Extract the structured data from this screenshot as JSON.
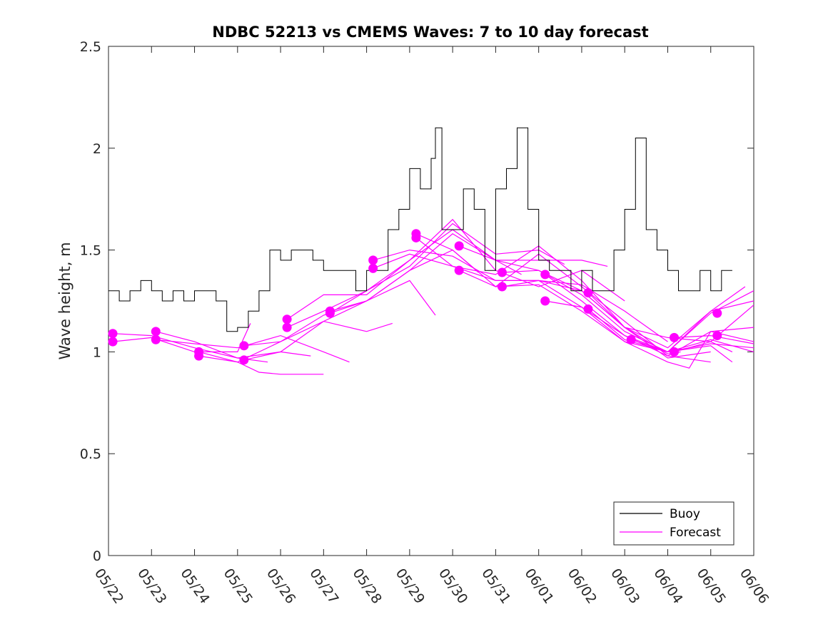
{
  "chart_data": {
    "type": "line",
    "title": "NDBC 52213 vs CMEMS Waves: 7 to 10 day forecast",
    "xlabel": "",
    "ylabel": "Wave height, m",
    "ylim": [
      0,
      2.5
    ],
    "yticks": [
      "0",
      "0.5",
      "1",
      "1.5",
      "2",
      "2.5"
    ],
    "xticks": [
      "05/22",
      "05/23",
      "05/24",
      "05/25",
      "05/26",
      "05/27",
      "05/28",
      "05/29",
      "05/30",
      "05/31",
      "06/01",
      "06/02",
      "06/03",
      "06/04",
      "06/05",
      "06/06"
    ],
    "xlim_days": [
      0,
      15
    ],
    "grid": false,
    "legend_position": "bottom-right",
    "legend": [
      "Buoy",
      "Forecast"
    ],
    "colors": {
      "buoy": "#000000",
      "forecast": "#ff00ff"
    },
    "series": [
      {
        "name": "Buoy",
        "x": [
          0,
          0.25,
          0.5,
          0.75,
          1,
          1.25,
          1.5,
          1.75,
          2,
          2.25,
          2.5,
          2.75,
          3,
          3.25,
          3.5,
          3.75,
          4,
          4.25,
          4.5,
          4.75,
          5,
          5.25,
          5.5,
          5.75,
          6,
          6.25,
          6.5,
          6.75,
          7,
          7.25,
          7.5,
          7.6,
          7.75,
          8,
          8.25,
          8.5,
          8.75,
          9,
          9.25,
          9.5,
          9.75,
          10,
          10.25,
          10.5,
          10.75,
          11,
          11.25,
          11.5,
          11.75,
          12,
          12.25,
          12.5,
          12.75,
          13,
          13.25,
          13.5,
          13.75,
          14,
          14.25,
          14.5
        ],
        "y": [
          1.3,
          1.25,
          1.3,
          1.35,
          1.3,
          1.25,
          1.3,
          1.25,
          1.3,
          1.3,
          1.25,
          1.1,
          1.12,
          1.2,
          1.3,
          1.5,
          1.45,
          1.5,
          1.5,
          1.45,
          1.4,
          1.4,
          1.4,
          1.3,
          1.4,
          1.4,
          1.6,
          1.7,
          1.9,
          1.8,
          1.95,
          2.1,
          1.6,
          1.6,
          1.8,
          1.7,
          1.4,
          1.8,
          1.9,
          2.1,
          1.7,
          1.45,
          1.4,
          1.4,
          1.3,
          1.4,
          1.3,
          1.3,
          1.5,
          1.7,
          2.05,
          1.6,
          1.5,
          1.4,
          1.3,
          1.3,
          1.4,
          1.3,
          1.4,
          1.4
        ]
      },
      {
        "name": "Forecast",
        "runs": [
          {
            "x": [
              0.1,
              1,
              2,
              3,
              3.7
            ],
            "y": [
              1.09,
              1.08,
              1.02,
              0.97,
              0.95
            ]
          },
          {
            "x": [
              0.1,
              1,
              2,
              3,
              3.3
            ],
            "y": [
              1.05,
              1.07,
              1.0,
              1.0,
              1.14
            ]
          },
          {
            "x": [
              1.1,
              2,
              3,
              4,
              4.7
            ],
            "y": [
              1.1,
              1.05,
              0.97,
              1.0,
              0.98
            ]
          },
          {
            "x": [
              1.1,
              2,
              3,
              4,
              5,
              5.6
            ],
            "y": [
              1.06,
              1.04,
              1.02,
              1.08,
              1.0,
              0.95
            ]
          },
          {
            "x": [
              2.1,
              3,
              4,
              5,
              6,
              6.6
            ],
            "y": [
              1.0,
              0.95,
              1.05,
              1.15,
              1.1,
              1.14
            ]
          },
          {
            "x": [
              2.1,
              3,
              3.5,
              4,
              5
            ],
            "y": [
              0.98,
              0.95,
              0.9,
              0.89,
              0.89
            ]
          },
          {
            "x": [
              3.15,
              4,
              5,
              6,
              7,
              7.6
            ],
            "y": [
              1.03,
              1.05,
              1.18,
              1.25,
              1.35,
              1.18
            ]
          },
          {
            "x": [
              3.15,
              4,
              5,
              6,
              7,
              8,
              8.6
            ],
            "y": [
              0.96,
              1.0,
              1.15,
              1.25,
              1.4,
              1.5,
              1.39
            ]
          },
          {
            "x": [
              4.15,
              5,
              6,
              7,
              8,
              9,
              9.6
            ],
            "y": [
              1.16,
              1.28,
              1.28,
              1.45,
              1.6,
              1.45,
              1.38
            ]
          },
          {
            "x": [
              4.15,
              5,
              6,
              7,
              8,
              9,
              10,
              10.6
            ],
            "y": [
              1.12,
              1.2,
              1.3,
              1.42,
              1.63,
              1.48,
              1.5,
              1.43
            ]
          },
          {
            "x": [
              5.15,
              6,
              7,
              8,
              9,
              10,
              11,
              11.6
            ],
            "y": [
              1.2,
              1.25,
              1.4,
              1.58,
              1.45,
              1.45,
              1.45,
              1.42
            ]
          },
          {
            "x": [
              5.15,
              6,
              7,
              8,
              9,
              10,
              11,
              12
            ],
            "y": [
              1.19,
              1.3,
              1.45,
              1.65,
              1.4,
              1.32,
              1.4,
              1.25
            ]
          },
          {
            "x": [
              6.15,
              7,
              8,
              9,
              10,
              11,
              12,
              13
            ],
            "y": [
              1.45,
              1.5,
              1.47,
              1.35,
              1.35,
              1.33,
              1.2,
              1.05
            ]
          },
          {
            "x": [
              6.15,
              7,
              8,
              9,
              10,
              11,
              12,
              13,
              13.3
            ],
            "y": [
              1.41,
              1.48,
              1.42,
              1.38,
              1.52,
              1.35,
              1.12,
              0.99,
              1.0
            ]
          },
          {
            "x": [
              7.15,
              8,
              9,
              10,
              11,
              12,
              13,
              14
            ],
            "y": [
              1.58,
              1.5,
              1.32,
              1.48,
              1.32,
              1.15,
              0.98,
              0.95
            ]
          },
          {
            "x": [
              7.15,
              8,
              9,
              10,
              11,
              12,
              13,
              14
            ],
            "y": [
              1.56,
              1.42,
              1.35,
              1.35,
              1.3,
              1.12,
              0.97,
              1.0
            ]
          },
          {
            "x": [
              8.15,
              9,
              10,
              11,
              12,
              13,
              14,
              14.5
            ],
            "y": [
              1.52,
              1.45,
              1.4,
              1.28,
              1.1,
              1.0,
              1.03,
              0.95
            ]
          },
          {
            "x": [
              8.15,
              9,
              10,
              11,
              12,
              13,
              14,
              15
            ],
            "y": [
              1.4,
              1.32,
              1.33,
              1.2,
              1.05,
              1.0,
              1.2,
              1.25
            ]
          },
          {
            "x": [
              9.15,
              10,
              11,
              12,
              13,
              14,
              14.8
            ],
            "y": [
              1.39,
              1.4,
              1.3,
              1.12,
              1.02,
              1.2,
              1.32
            ]
          },
          {
            "x": [
              9.15,
              10,
              11,
              12,
              13,
              13.5,
              14,
              15
            ],
            "y": [
              1.32,
              1.35,
              1.22,
              1.05,
              0.95,
              0.92,
              1.1,
              1.05
            ]
          },
          {
            "x": [
              10.15,
              11,
              12,
              13,
              14,
              15
            ],
            "y": [
              1.38,
              1.25,
              1.08,
              1.0,
              1.06,
              1.0
            ]
          },
          {
            "x": [
              10.15,
              11,
              12,
              13,
              14,
              15
            ],
            "y": [
              1.25,
              1.22,
              1.08,
              0.98,
              1.1,
              1.12
            ]
          },
          {
            "x": [
              11.15,
              12,
              13,
              14,
              15
            ],
            "y": [
              1.29,
              1.12,
              1.07,
              1.05,
              1.23
            ]
          },
          {
            "x": [
              11.15,
              12,
              13,
              14,
              15
            ],
            "y": [
              1.21,
              1.06,
              1.0,
              1.04,
              1.02
            ]
          },
          {
            "x": [
              12.15,
              13,
              14,
              15
            ],
            "y": [
              1.06,
              1.0,
              1.19,
              1.3
            ]
          },
          {
            "x": [
              13.15,
              14,
              15
            ],
            "y": [
              1.07,
              1.08,
              1.04
            ]
          },
          {
            "x": [
              13.15,
              14,
              14.5
            ],
            "y": [
              1.0,
              1.05,
              1.0
            ]
          }
        ]
      }
    ],
    "forecast_markers": {
      "x": [
        0.1,
        0.1,
        1.1,
        1.1,
        2.1,
        2.1,
        3.15,
        3.15,
        4.15,
        4.15,
        5.15,
        5.15,
        6.15,
        6.15,
        7.15,
        7.15,
        8.15,
        8.15,
        9.15,
        9.15,
        10.15,
        10.15,
        11.15,
        11.15,
        12.15,
        13.15,
        13.15,
        14.15,
        14.15
      ],
      "y": [
        1.09,
        1.05,
        1.1,
        1.06,
        1.0,
        0.98,
        1.03,
        0.96,
        1.16,
        1.12,
        1.2,
        1.19,
        1.45,
        1.41,
        1.58,
        1.56,
        1.52,
        1.4,
        1.39,
        1.32,
        1.38,
        1.25,
        1.29,
        1.21,
        1.06,
        1.07,
        1.0,
        1.19,
        1.08
      ]
    }
  }
}
